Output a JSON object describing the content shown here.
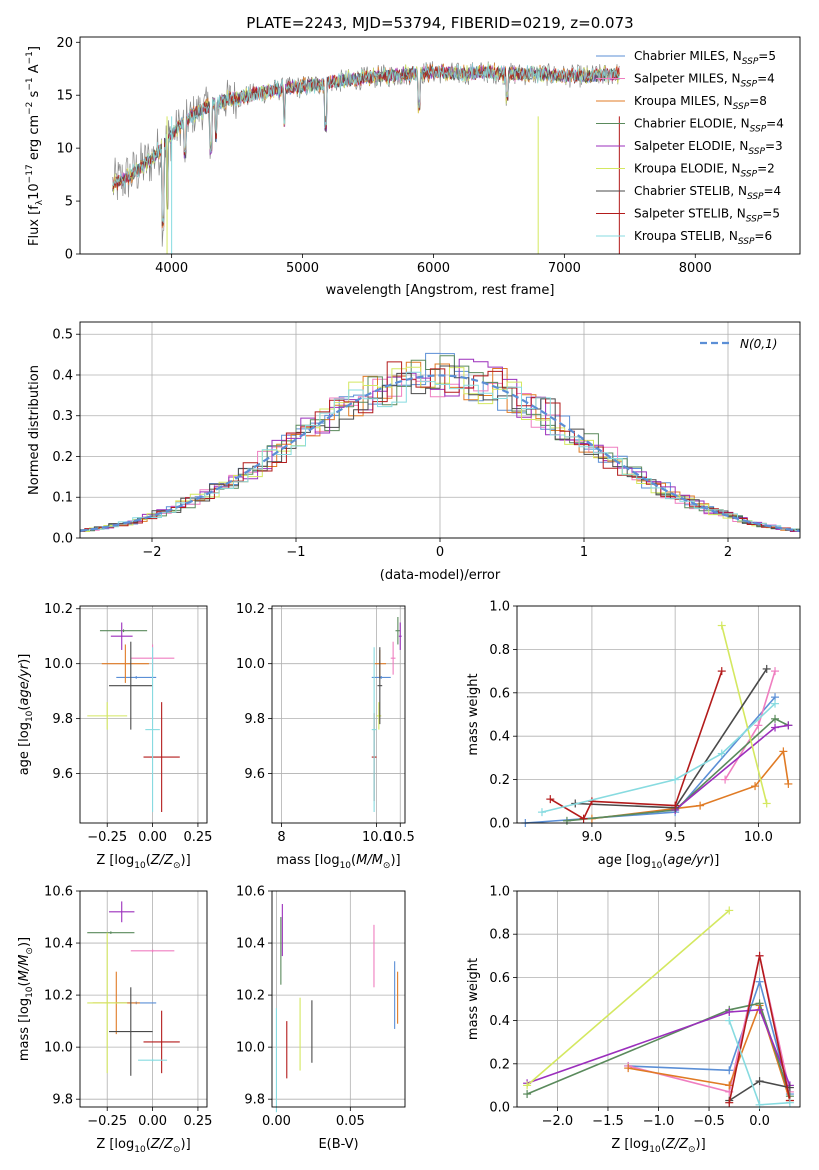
{
  "colors": {
    "Chabrier MILES": "#5b8fd6",
    "Salpeter MILES": "#ef7ec0",
    "Kroupa MILES": "#e07b25",
    "Chabrier ELODIE": "#5a8a5c",
    "Salpeter ELODIE": "#9b2fbc",
    "Kroupa ELODIE": "#d4e860",
    "Chabrier STELIB": "#4a4a4a",
    "Salpeter STELIB": "#b31b1b",
    "Kroupa STELIB": "#87dbe0",
    "normal": "#5b8fd6",
    "grid": "#b0b0b0",
    "spectrum_data": "#888888"
  },
  "chart_data": [
    {
      "id": "spectrum",
      "type": "line",
      "title": "PLATE=2243, MJD=53794, FIBERID=0219, z=0.073",
      "xlabel": "wavelength [Angstrom, rest frame]",
      "ylabel": "Flux [f_λ10^-17 erg cm^-2 s^-1 A^-1]",
      "xlim": [
        3300,
        8800
      ],
      "ylim": [
        0,
        20.5
      ],
      "xticks": [
        "4000",
        "5000",
        "6000",
        "7000",
        "8000"
      ],
      "yticks": [
        "0",
        "5",
        "10",
        "15",
        "20"
      ],
      "grid": false,
      "legend_position": "upper right",
      "legend": [
        {
          "name": "Chabrier MILES",
          "n_ssp": 5
        },
        {
          "name": "Salpeter MILES",
          "n_ssp": 4
        },
        {
          "name": "Kroupa MILES",
          "n_ssp": 8
        },
        {
          "name": "Chabrier ELODIE",
          "n_ssp": 4
        },
        {
          "name": "Salpeter ELODIE",
          "n_ssp": 3
        },
        {
          "name": "Kroupa ELODIE",
          "n_ssp": 2
        },
        {
          "name": "Chabrier STELIB",
          "n_ssp": 4
        },
        {
          "name": "Salpeter STELIB",
          "n_ssp": 5
        },
        {
          "name": "Kroupa STELIB",
          "n_ssp": 6
        }
      ],
      "continuum": {
        "wavelength": [
          3550,
          3700,
          3850,
          3950,
          4050,
          4200,
          4400,
          4600,
          4800,
          5000,
          5200,
          5400,
          5600,
          5800,
          6000,
          6200,
          6400,
          6600,
          6800,
          7000,
          7200,
          7400
        ],
        "flux": [
          6.5,
          7.5,
          9.0,
          10.5,
          12.0,
          13.5,
          14.5,
          15.0,
          15.5,
          15.8,
          16.2,
          16.5,
          16.8,
          17.0,
          17.2,
          17.0,
          17.2,
          17.0,
          17.0,
          16.8,
          16.8,
          17.0
        ]
      }
    },
    {
      "id": "residuals",
      "type": "line",
      "xlabel": "(data-model)/error",
      "ylabel": "Normed distribution",
      "xlim": [
        -2.5,
        2.5
      ],
      "ylim": [
        0,
        0.53
      ],
      "xticks": [
        "−2",
        "−1",
        "0",
        "1",
        "2"
      ],
      "yticks": [
        "0.0",
        "0.1",
        "0.2",
        "0.3",
        "0.4",
        "0.5"
      ],
      "grid": true,
      "legend_position": "upper right",
      "legend_label": "N(0,1)",
      "normal": {
        "mu": 0,
        "sigma": 1
      }
    },
    {
      "id": "age-vs-Z",
      "type": "scatter",
      "xlabel": "Z [log10(Z/Z☉)]",
      "ylabel": "age [log10(age/yr)]",
      "xlim": [
        -0.4,
        0.3
      ],
      "ylim": [
        9.42,
        10.21
      ],
      "xticks": [
        "−0.25",
        "0.00",
        "0.25"
      ],
      "yticks": [
        "9.6",
        "9.8",
        "10.0",
        "10.2"
      ],
      "grid": true,
      "points": [
        {
          "series": "Chabrier MILES",
          "x": -0.09,
          "y": 9.95,
          "xerr": 0.11,
          "yerr": 0.0
        },
        {
          "series": "Salpeter MILES",
          "x": 0.0,
          "y": 10.02,
          "xerr": 0.12,
          "yerr": 0.05
        },
        {
          "series": "Kroupa MILES",
          "x": -0.15,
          "y": 10.0,
          "xerr": 0.13,
          "yerr": 0.07
        },
        {
          "series": "Chabrier ELODIE",
          "x": -0.16,
          "y": 10.12,
          "xerr": 0.13,
          "yerr": 0.0
        },
        {
          "series": "Salpeter ELODIE",
          "x": -0.17,
          "y": 10.1,
          "xerr": 0.06,
          "yerr": 0.05
        },
        {
          "series": "Kroupa ELODIE",
          "x": -0.25,
          "y": 9.81,
          "xerr": 0.11,
          "yerr": 0.05
        },
        {
          "series": "Chabrier STELIB",
          "x": -0.12,
          "y": 9.92,
          "xerr": 0.12,
          "yerr": 0.16
        },
        {
          "series": "Salpeter STELIB",
          "x": 0.05,
          "y": 9.66,
          "xerr": 0.1,
          "yerr": 0.2
        },
        {
          "series": "Kroupa STELIB",
          "x": 0.0,
          "y": 9.76,
          "xerr": 0.04,
          "yerr": 0.3
        }
      ]
    },
    {
      "id": "age-vs-mass",
      "type": "scatter",
      "xlabel": "mass [log10(M/M☉)]",
      "ylabel": "",
      "xlim": [
        7.8,
        10.6
      ],
      "ylim": [
        9.42,
        10.21
      ],
      "xticks": [
        "8",
        "10.0",
        "10.5"
      ],
      "yticks": [
        "9.6",
        "9.8",
        "10.0",
        "10.2"
      ],
      "grid": true,
      "points": [
        {
          "series": "Chabrier MILES",
          "x": 10.1,
          "y": 9.95,
          "xerr": 0.2,
          "yerr": 0.0
        },
        {
          "series": "Salpeter MILES",
          "x": 10.35,
          "y": 10.02,
          "xerr": 0.05,
          "yerr": 0.06
        },
        {
          "series": "Kroupa MILES",
          "x": 10.07,
          "y": 10.0,
          "xerr": 0.13,
          "yerr": 0.05
        },
        {
          "series": "Chabrier ELODIE",
          "x": 10.45,
          "y": 10.12,
          "xerr": 0.05,
          "yerr": 0.05
        },
        {
          "series": "Salpeter ELODIE",
          "x": 10.5,
          "y": 10.1,
          "xerr": 0.03,
          "yerr": 0.05
        },
        {
          "series": "Kroupa ELODIE",
          "x": 10.05,
          "y": 9.81,
          "xerr": 0.05,
          "yerr": 0.05
        },
        {
          "series": "Chabrier STELIB",
          "x": 10.07,
          "y": 9.92,
          "xerr": 0.05,
          "yerr": 0.14
        },
        {
          "series": "Salpeter STELIB",
          "x": 9.95,
          "y": 9.66,
          "xerr": 0.05,
          "yerr": 0.16
        },
        {
          "series": "Kroupa STELIB",
          "x": 9.95,
          "y": 9.76,
          "xerr": 0.05,
          "yerr": 0.3
        }
      ]
    },
    {
      "id": "mass-weight-vs-age",
      "type": "line",
      "xlabel": "age [log10(age/yr)]",
      "ylabel": "mass weight",
      "xlim": [
        8.55,
        10.25
      ],
      "ylim": [
        0,
        1.0
      ],
      "xticks": [
        "9.0",
        "9.5",
        "10.0"
      ],
      "yticks": [
        "0.0",
        "0.2",
        "0.4",
        "0.6",
        "0.8",
        "1.0"
      ],
      "grid": true,
      "series": [
        {
          "name": "Chabrier MILES",
          "x": [
            8.6,
            9.5,
            10.1
          ],
          "y": [
            0.0,
            0.05,
            0.58
          ]
        },
        {
          "name": "Salpeter MILES",
          "x": [
            9.8,
            10.0,
            10.1
          ],
          "y": [
            0.2,
            0.45,
            0.7
          ]
        },
        {
          "name": "Kroupa MILES",
          "x": [
            9.0,
            9.65,
            9.98,
            10.15,
            10.18
          ],
          "y": [
            0.02,
            0.08,
            0.17,
            0.33,
            0.18
          ]
        },
        {
          "name": "Chabrier ELODIE",
          "x": [
            8.85,
            9.5,
            10.1,
            10.18
          ],
          "y": [
            0.01,
            0.06,
            0.48,
            0.45
          ]
        },
        {
          "name": "Salpeter ELODIE",
          "x": [
            9.5,
            10.1,
            10.18
          ],
          "y": [
            0.06,
            0.44,
            0.45
          ]
        },
        {
          "name": "Kroupa ELODIE",
          "x": [
            9.78,
            10.05
          ],
          "y": [
            0.91,
            0.09
          ]
        },
        {
          "name": "Chabrier STELIB",
          "x": [
            8.9,
            9.5,
            10.05
          ],
          "y": [
            0.09,
            0.07,
            0.71
          ]
        },
        {
          "name": "Salpeter STELIB",
          "x": [
            8.75,
            8.95,
            9.0,
            9.5,
            9.78
          ],
          "y": [
            0.11,
            0.02,
            0.1,
            0.08,
            0.7
          ]
        },
        {
          "name": "Kroupa STELIB",
          "x": [
            8.7,
            9.5,
            9.78,
            10.1
          ],
          "y": [
            0.05,
            0.2,
            0.32,
            0.55
          ]
        }
      ]
    },
    {
      "id": "mass-vs-Z",
      "type": "scatter",
      "xlabel": "Z [log10(Z/Z☉)]",
      "ylabel": "mass [log10(M/M☉)]",
      "xlim": [
        -0.4,
        0.3
      ],
      "ylim": [
        9.77,
        10.6
      ],
      "xticks": [
        "−0.25",
        "0.00",
        "0.25"
      ],
      "yticks": [
        "9.8",
        "10.0",
        "10.2",
        "10.4",
        "10.6"
      ],
      "grid": true,
      "points": [
        {
          "series": "Chabrier MILES",
          "x": -0.09,
          "y": 10.17,
          "xerr": 0.11,
          "yerr": 0.0
        },
        {
          "series": "Salpeter MILES",
          "x": 0.0,
          "y": 10.37,
          "xerr": 0.12,
          "yerr": 0.0
        },
        {
          "series": "Kroupa MILES",
          "x": -0.2,
          "y": 10.17,
          "xerr": 0.13,
          "yerr": 0.12
        },
        {
          "series": "Chabrier ELODIE",
          "x": -0.23,
          "y": 10.44,
          "xerr": 0.13,
          "yerr": 0.0
        },
        {
          "series": "Salpeter ELODIE",
          "x": -0.17,
          "y": 10.52,
          "xerr": 0.07,
          "yerr": 0.04
        },
        {
          "series": "Kroupa ELODIE",
          "x": -0.25,
          "y": 10.17,
          "xerr": 0.11,
          "yerr": 0.27
        },
        {
          "series": "Chabrier STELIB",
          "x": -0.12,
          "y": 10.06,
          "xerr": 0.12,
          "yerr": 0.17
        },
        {
          "series": "Salpeter STELIB",
          "x": 0.05,
          "y": 10.02,
          "xerr": 0.1,
          "yerr": 0.12
        },
        {
          "series": "Kroupa STELIB",
          "x": 0.0,
          "y": 9.95,
          "xerr": 0.08,
          "yerr": 0.0
        }
      ]
    },
    {
      "id": "mass-vs-EBV",
      "type": "scatter",
      "xlabel": "E(B-V)",
      "ylabel": "",
      "xlim": [
        -0.003,
        0.087
      ],
      "ylim": [
        9.77,
        10.6
      ],
      "xticks": [
        "0.00",
        "0.05"
      ],
      "yticks": [
        "9.8",
        "10.0",
        "10.2",
        "10.4",
        "10.6"
      ],
      "grid": true,
      "points": [
        {
          "series": "Chabrier MILES",
          "x": 0.08,
          "y": 10.2,
          "xerr": 0,
          "yerr": 0.13
        },
        {
          "series": "Salpeter MILES",
          "x": 0.066,
          "y": 10.35,
          "xerr": 0,
          "yerr": 0.12
        },
        {
          "series": "Kroupa MILES",
          "x": 0.082,
          "y": 10.19,
          "xerr": 0,
          "yerr": 0.1
        },
        {
          "series": "Chabrier ELODIE",
          "x": 0.003,
          "y": 10.37,
          "xerr": 0,
          "yerr": 0.13
        },
        {
          "series": "Salpeter ELODIE",
          "x": 0.004,
          "y": 10.45,
          "xerr": 0,
          "yerr": 0.1
        },
        {
          "series": "Kroupa ELODIE",
          "x": 0.016,
          "y": 10.05,
          "xerr": 0,
          "yerr": 0.14
        },
        {
          "series": "Chabrier STELIB",
          "x": 0.024,
          "y": 10.06,
          "xerr": 0,
          "yerr": 0.12
        },
        {
          "series": "Salpeter STELIB",
          "x": 0.007,
          "y": 9.99,
          "xerr": 0,
          "yerr": 0.11
        },
        {
          "series": "Kroupa STELIB",
          "x": 0.0,
          "y": 9.95,
          "xerr": 0,
          "yerr": 0.2
        }
      ]
    },
    {
      "id": "mass-weight-vs-Z",
      "type": "line",
      "xlabel": "Z [log10(Z/Z☉)]",
      "ylabel": "mass weight",
      "xlim": [
        -2.4,
        0.4
      ],
      "ylim": [
        0,
        1.0
      ],
      "xticks": [
        "−2.0",
        "−1.5",
        "−1.0",
        "−0.5",
        "0.0"
      ],
      "yticks": [
        "0.0",
        "0.2",
        "0.4",
        "0.6",
        "0.8",
        "1.0"
      ],
      "grid": true,
      "series": [
        {
          "name": "Chabrier MILES",
          "x": [
            -1.3,
            -0.3,
            0.0,
            0.3
          ],
          "y": [
            0.19,
            0.17,
            0.58,
            0.06
          ]
        },
        {
          "name": "Salpeter MILES",
          "x": [
            -1.3,
            -0.3,
            0.0,
            0.3
          ],
          "y": [
            0.19,
            0.07,
            0.7,
            0.07
          ]
        },
        {
          "name": "Kroupa MILES",
          "x": [
            -1.3,
            -0.3,
            0.0,
            0.3
          ],
          "y": [
            0.18,
            0.1,
            0.47,
            0.03
          ]
        },
        {
          "name": "Chabrier ELODIE",
          "x": [
            -2.3,
            -0.3,
            0.0,
            0.3
          ],
          "y": [
            0.06,
            0.45,
            0.48,
            0.05
          ]
        },
        {
          "name": "Salpeter ELODIE",
          "x": [
            -2.3,
            -0.3,
            0.0,
            0.3
          ],
          "y": [
            0.11,
            0.44,
            0.45,
            0.1
          ]
        },
        {
          "name": "Kroupa ELODIE",
          "x": [
            -2.3,
            -0.3
          ],
          "y": [
            0.1,
            0.91
          ]
        },
        {
          "name": "Chabrier STELIB",
          "x": [
            -0.3,
            0.0,
            0.3
          ],
          "y": [
            0.03,
            0.12,
            0.09
          ]
        },
        {
          "name": "Salpeter STELIB",
          "x": [
            -0.3,
            0.0,
            0.3
          ],
          "y": [
            0.02,
            0.7,
            0.03
          ]
        },
        {
          "name": "Kroupa STELIB",
          "x": [
            -0.3,
            0.0,
            0.3
          ],
          "y": [
            0.4,
            0.01,
            0.02
          ]
        }
      ]
    }
  ]
}
